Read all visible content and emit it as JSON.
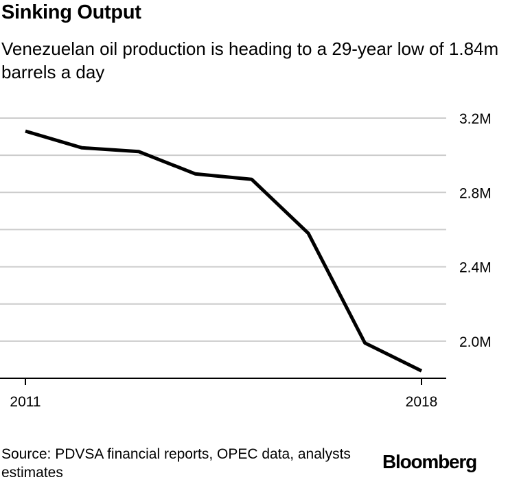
{
  "title": "Sinking Output",
  "subtitle": "Venezuelan oil production is heading to a 29-year low of 1.84m barrels a day",
  "source": "Source: PDVSA financial reports, OPEC data, analysts estimates",
  "brand": "Bloomberg",
  "colors": {
    "line": "#000000",
    "grid": "#cccccc",
    "axis": "#000000",
    "text": "#000000"
  },
  "chart_data": {
    "type": "line",
    "x": [
      2011,
      2012,
      2013,
      2014,
      2015,
      2016,
      2017,
      2018
    ],
    "x_tick_labels": [
      "2011",
      "2018"
    ],
    "y_tick_values": [
      2.0,
      2.4,
      2.8,
      3.2
    ],
    "y_tick_labels": [
      "2.0M",
      "2.4M",
      "2.8M",
      "3.2M"
    ],
    "ylim": [
      1.8,
      3.2
    ],
    "grid": true,
    "y_axis_side": "right",
    "series": [
      {
        "values": [
          3.13,
          3.04,
          3.02,
          2.9,
          2.87,
          2.58,
          1.99,
          1.84
        ]
      }
    ]
  }
}
